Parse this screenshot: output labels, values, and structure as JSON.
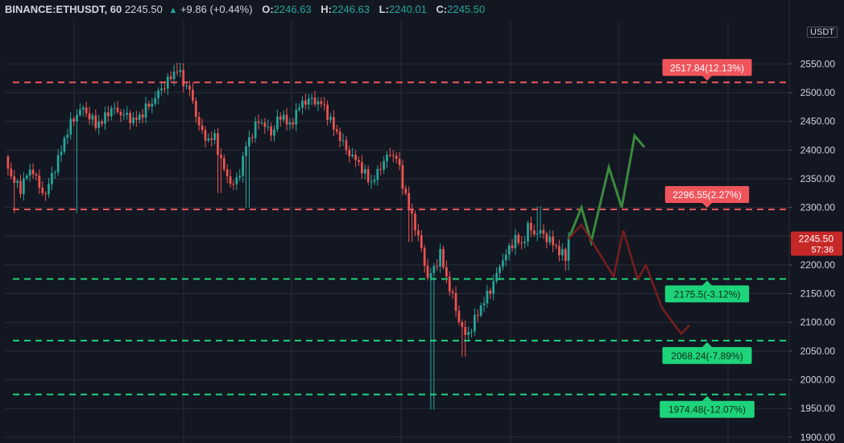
{
  "header": {
    "symbol": "BINANCE:ETHUSDT, 60",
    "price": "2245.50",
    "change": "+9.86 (+0.44%)",
    "open_label": "O:",
    "open": "2246.63",
    "high_label": "H:",
    "high": "2246.63",
    "low_label": "L:",
    "low": "2240.01",
    "close_label": "C:",
    "close": "2245.50"
  },
  "axis": {
    "currency": "USDT",
    "current_price": "2245.50",
    "countdown": "57:36"
  },
  "colors": {
    "background": "#131722",
    "bull": "#26a69a",
    "bear": "#ef5350",
    "resistance": "#f0545b",
    "support": "#1ed47a",
    "bull_path": "#3a8a3c",
    "bear_path": "#7a1d1d",
    "grid": "#2a2e39"
  },
  "chart_data": {
    "type": "candlestick",
    "ylim": [
      1900,
      2600
    ],
    "y_ticks": [
      "1900.00",
      "1950.00",
      "2000.00",
      "2050.00",
      "2100.00",
      "2150.00",
      "2200.00",
      "2250.00",
      "2300.00",
      "2350.00",
      "2400.00",
      "2450.00",
      "2500.00",
      "2550.00"
    ],
    "grid": true,
    "levels": [
      {
        "price": 2517.84,
        "label": "2517.84(12.13%)",
        "kind": "resistance"
      },
      {
        "price": 2296.55,
        "label": "2296.55(2.27%)",
        "kind": "resistance"
      },
      {
        "price": 2175.5,
        "label": "2175.5(-3.12%)",
        "kind": "support"
      },
      {
        "price": 2068.24,
        "label": "2068.24(-7.89%)",
        "kind": "support"
      },
      {
        "price": 1974.48,
        "label": "1974.48(-12.07%)",
        "kind": "support"
      }
    ],
    "price_path": [
      [
        0,
        2385
      ],
      [
        5,
        2345
      ],
      [
        10,
        2330
      ],
      [
        14,
        2355
      ],
      [
        18,
        2365
      ],
      [
        22,
        2335
      ],
      [
        26,
        2325
      ],
      [
        30,
        2360
      ],
      [
        34,
        2385
      ],
      [
        38,
        2420
      ],
      [
        42,
        2445
      ],
      [
        46,
        2460
      ],
      [
        50,
        2470
      ],
      [
        54,
        2455
      ],
      [
        58,
        2445
      ],
      [
        62,
        2450
      ],
      [
        66,
        2470
      ],
      [
        70,
        2475
      ],
      [
        74,
        2465
      ],
      [
        78,
        2460
      ],
      [
        82,
        2450
      ],
      [
        86,
        2455
      ],
      [
        90,
        2470
      ],
      [
        94,
        2480
      ],
      [
        98,
        2500
      ],
      [
        102,
        2515
      ],
      [
        106,
        2530
      ],
      [
        110,
        2545
      ],
      [
        114,
        2520
      ],
      [
        118,
        2505
      ],
      [
        122,
        2460
      ],
      [
        126,
        2425
      ],
      [
        130,
        2415
      ],
      [
        134,
        2420
      ],
      [
        138,
        2380
      ],
      [
        142,
        2355
      ],
      [
        146,
        2340
      ],
      [
        150,
        2365
      ],
      [
        154,
        2410
      ],
      [
        158,
        2430
      ],
      [
        162,
        2450
      ],
      [
        166,
        2440
      ],
      [
        170,
        2425
      ],
      [
        174,
        2450
      ],
      [
        178,
        2460
      ],
      [
        182,
        2440
      ],
      [
        186,
        2470
      ],
      [
        190,
        2485
      ],
      [
        194,
        2490
      ],
      [
        198,
        2485
      ],
      [
        202,
        2480
      ],
      [
        206,
        2460
      ],
      [
        210,
        2435
      ],
      [
        214,
        2420
      ],
      [
        218,
        2400
      ],
      [
        222,
        2390
      ],
      [
        226,
        2380
      ],
      [
        230,
        2360
      ],
      [
        234,
        2345
      ],
      [
        238,
        2360
      ],
      [
        242,
        2380
      ],
      [
        246,
        2390
      ],
      [
        250,
        2385
      ],
      [
        254,
        2340
      ],
      [
        258,
        2300
      ],
      [
        262,
        2270
      ],
      [
        266,
        2230
      ],
      [
        270,
        2180
      ],
      [
        274,
        2195
      ],
      [
        278,
        2220
      ],
      [
        282,
        2175
      ],
      [
        286,
        2140
      ],
      [
        290,
        2100
      ],
      [
        294,
        2075
      ],
      [
        298,
        2090
      ],
      [
        302,
        2120
      ],
      [
        306,
        2140
      ],
      [
        310,
        2160
      ],
      [
        314,
        2185
      ],
      [
        318,
        2210
      ],
      [
        322,
        2225
      ],
      [
        326,
        2245
      ],
      [
        330,
        2230
      ],
      [
        334,
        2265
      ],
      [
        338,
        2255
      ],
      [
        342,
        2260
      ],
      [
        346,
        2250
      ],
      [
        350,
        2240
      ],
      [
        354,
        2225
      ],
      [
        358,
        2212
      ],
      [
        360,
        2245
      ]
    ],
    "spikes": [
      {
        "i": 5,
        "low": 2290
      },
      {
        "i": 45,
        "low": 2290
      },
      {
        "i": 110,
        "high": 2552
      },
      {
        "i": 136,
        "low": 2325
      },
      {
        "i": 154,
        "low": 2300
      },
      {
        "i": 258,
        "low": 2240
      },
      {
        "i": 272,
        "low": 1948
      },
      {
        "i": 292,
        "low": 2040
      },
      {
        "i": 340,
        "high": 2302
      },
      {
        "i": 358,
        "low": 2190
      }
    ],
    "bull_projection": [
      [
        2245,
        0
      ],
      [
        2300,
        0
      ],
      [
        2240,
        0
      ],
      [
        2370,
        0
      ],
      [
        2300,
        0
      ],
      [
        2425,
        0
      ],
      [
        2405,
        0
      ]
    ],
    "bear_projection": [
      [
        2245,
        0
      ],
      [
        2270,
        0
      ],
      [
        2225,
        0
      ],
      [
        2180,
        0
      ],
      [
        2260,
        0
      ],
      [
        2175,
        0
      ],
      [
        2200,
        0
      ],
      [
        2125,
        0
      ],
      [
        2080,
        0
      ],
      [
        2095,
        0
      ]
    ]
  }
}
